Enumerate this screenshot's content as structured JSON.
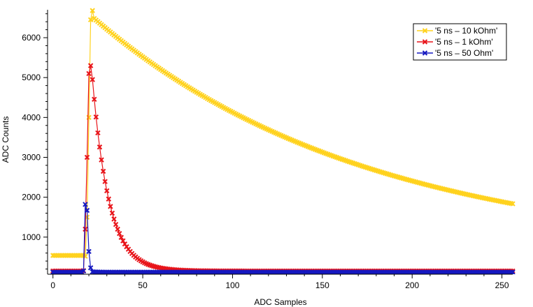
{
  "chart_data": {
    "type": "line",
    "xlabel": "ADC Samples",
    "ylabel": "ADC Counts",
    "xlim": [
      -3,
      256
    ],
    "ylim": [
      70,
      6700
    ],
    "x_ticks": [
      0,
      50,
      100,
      150,
      200,
      250
    ],
    "y_ticks": [
      1000,
      2000,
      3000,
      4000,
      5000,
      6000
    ],
    "legend_position": "top-right",
    "marker": "x",
    "series": [
      {
        "name": "'5 ns – 10 kOhm'",
        "color": "#FFD21E",
        "baseline": 540,
        "pulse": [
          [
            18,
            520
          ],
          [
            19,
            1500
          ],
          [
            20,
            4000
          ],
          [
            21,
            6450
          ],
          [
            22,
            6680
          ]
        ],
        "decay_start": 23,
        "decay_peak": 6480,
        "decay_tau": 153,
        "decay_end": 256
      },
      {
        "name": "'5 ns – 1 kOhm'",
        "color": "#E8141A",
        "baseline": 150,
        "pulse": [
          [
            17,
            160
          ],
          [
            18,
            1200
          ],
          [
            19,
            3000
          ],
          [
            20,
            5100
          ],
          [
            21,
            5300
          ]
        ],
        "decay_start": 22,
        "decay_peak": 4950,
        "decay_tau": 9.2,
        "decay_end": 256
      },
      {
        "name": "'5 ns – 50 Ohm'",
        "color": "#1518C0",
        "baseline": 120,
        "pulse": [
          [
            17,
            150
          ],
          [
            18,
            1820
          ],
          [
            19,
            1670
          ],
          [
            20,
            640
          ],
          [
            21,
            230
          ]
        ],
        "decay_start": 22,
        "decay_peak": 130,
        "decay_tau": 5,
        "decay_end": 256
      }
    ]
  }
}
